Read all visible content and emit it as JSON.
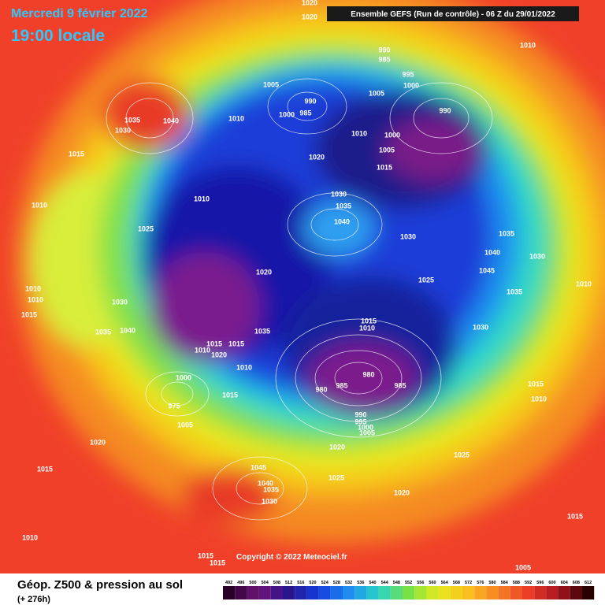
{
  "header": {
    "title_date": "Mercredi 9 février 2022",
    "title_time": "19:00 locale",
    "model": "Ensemble GEFS  (Run de contrôle)  - 06 Z du 29/01/2022"
  },
  "map": {
    "pressure_labels": [
      1020,
      1020,
      990,
      985,
      1010,
      995,
      1005,
      1005,
      1000,
      990,
      985,
      1000,
      990,
      1035,
      1040,
      1030,
      1010,
      1010,
      1000,
      1005,
      1015,
      1020,
      1015,
      1010,
      1010,
      1030,
      1035,
      1040,
      1025,
      1030,
      1035,
      1040,
      1030,
      1020,
      1045,
      1025,
      1010,
      1010,
      1035,
      1010,
      1030,
      1015,
      1015,
      1010,
      1030,
      1035,
      1040,
      1035,
      1015,
      1010,
      1020,
      1015,
      1010,
      980,
      980,
      985,
      985,
      1000,
      1015,
      1015,
      1010,
      975,
      990,
      995,
      1000,
      1005,
      1005,
      1020,
      1020,
      1025,
      1015,
      1045,
      1025,
      1040,
      1035,
      1020,
      1030,
      1015,
      1010,
      1015,
      1015,
      1005
    ]
  },
  "footer": {
    "copyright": "Copyright © 2022 Meteociel.fr",
    "legend_title": "Géop. Z500 & pression au sol",
    "lead_time": "(+ 276h)",
    "scale": [
      492,
      496,
      500,
      504,
      508,
      512,
      516,
      520,
      524,
      528,
      532,
      536,
      540,
      544,
      548,
      552,
      556,
      560,
      564,
      568,
      572,
      576,
      580,
      584,
      588,
      592,
      596,
      600,
      604,
      608,
      612
    ]
  }
}
